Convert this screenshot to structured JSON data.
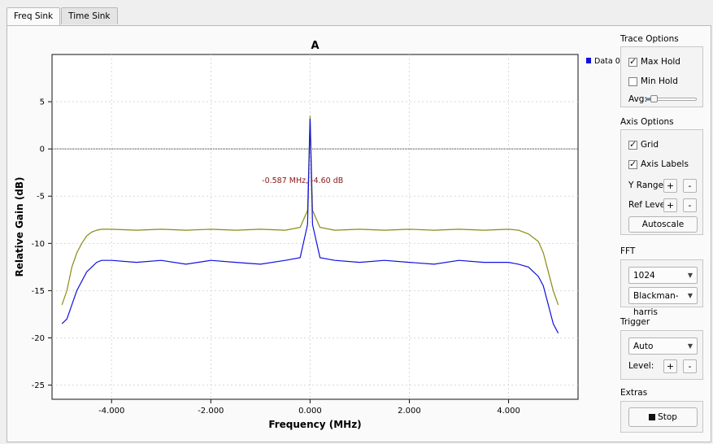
{
  "tabs": [
    {
      "label": "Freq Sink",
      "active": true
    },
    {
      "label": "Time Sink",
      "active": false
    }
  ],
  "chart_data": {
    "type": "line",
    "title": "A",
    "xlabel": "Frequency (MHz)",
    "ylabel": "Relative Gain (dB)",
    "xlim": [
      -5.2,
      5.4
    ],
    "ylim": [
      -26.5,
      10.0
    ],
    "x_ticks": [
      -4.0,
      -2.0,
      0.0,
      2.0,
      4.0
    ],
    "x_tick_labels": [
      "-4.000",
      "-2.000",
      "0.000",
      "2.000",
      "4.000"
    ],
    "y_ticks": [
      5,
      0,
      -5,
      -10,
      -15,
      -20,
      -25
    ],
    "y_tick_labels": [
      "5",
      "0",
      "-5",
      "-10",
      "-15",
      "-20",
      "-25"
    ],
    "grid": true,
    "reference_line_y": 0,
    "annotation": {
      "text": "-0.587 MHz, -4.60 dB",
      "x": -0.15,
      "y": -3.6
    },
    "legend": {
      "entries": [
        "Data 0"
      ],
      "placement": "top-right"
    },
    "series": [
      {
        "name": "Data 0",
        "color": "#1010e0",
        "x": [
          -5.0,
          -4.9,
          -4.8,
          -4.7,
          -4.6,
          -4.5,
          -4.4,
          -4.3,
          -4.2,
          -4.0,
          -3.5,
          -3.0,
          -2.5,
          -2.0,
          -1.5,
          -1.0,
          -0.5,
          -0.2,
          -0.05,
          0.0,
          0.05,
          0.2,
          0.5,
          1.0,
          1.5,
          2.0,
          2.5,
          3.0,
          3.5,
          4.0,
          4.2,
          4.4,
          4.6,
          4.7,
          4.8,
          4.9,
          5.0
        ],
        "values": [
          -18.5,
          -18.0,
          -16.5,
          -15.0,
          -14.0,
          -13.0,
          -12.5,
          -12.0,
          -11.8,
          -11.8,
          -12.0,
          -11.8,
          -12.2,
          -11.8,
          -12.0,
          -12.2,
          -11.8,
          -11.5,
          -8.0,
          3.2,
          -8.0,
          -11.5,
          -11.8,
          -12.0,
          -11.8,
          -12.0,
          -12.2,
          -11.8,
          -12.0,
          -12.0,
          -12.2,
          -12.5,
          -13.5,
          -14.5,
          -16.5,
          -18.5,
          -19.5
        ]
      },
      {
        "name": "Max Hold",
        "color": "#8a8a10",
        "x": [
          -5.0,
          -4.9,
          -4.8,
          -4.7,
          -4.6,
          -4.5,
          -4.4,
          -4.3,
          -4.2,
          -4.0,
          -3.5,
          -3.0,
          -2.5,
          -2.0,
          -1.5,
          -1.0,
          -0.5,
          -0.2,
          -0.05,
          0.0,
          0.05,
          0.2,
          0.5,
          1.0,
          1.5,
          2.0,
          2.5,
          3.0,
          3.5,
          4.0,
          4.2,
          4.4,
          4.6,
          4.7,
          4.8,
          4.9,
          5.0
        ],
        "values": [
          -16.5,
          -15.0,
          -12.5,
          -11.0,
          -10.0,
          -9.2,
          -8.8,
          -8.6,
          -8.5,
          -8.5,
          -8.6,
          -8.5,
          -8.6,
          -8.5,
          -8.6,
          -8.5,
          -8.6,
          -8.3,
          -6.5,
          3.5,
          -6.5,
          -8.3,
          -8.6,
          -8.5,
          -8.6,
          -8.5,
          -8.6,
          -8.5,
          -8.6,
          -8.5,
          -8.6,
          -9.0,
          -9.8,
          -11.0,
          -13.0,
          -15.0,
          -16.5
        ]
      }
    ]
  },
  "options": {
    "trace_title": "Trace Options",
    "max_hold": {
      "label": "Max Hold",
      "checked": true
    },
    "min_hold": {
      "label": "Min Hold",
      "checked": false
    },
    "avg_label": "Avg:",
    "avg_level": 0.12,
    "axis_title": "Axis Options",
    "grid": {
      "label": "Grid",
      "checked": true
    },
    "axis_labels": {
      "label": "Axis Labels",
      "checked": true
    },
    "y_range_label": "Y Range:",
    "ref_level_label": "Ref Level:",
    "plus": "+",
    "minus": "-",
    "autoscale": "Autoscale",
    "fft_title": "FFT",
    "fft_size": "1024",
    "fft_window": "Blackman-harris",
    "trigger_title": "Trigger",
    "trigger_mode": "Auto",
    "trigger_level_label": "Level:",
    "extras_title": "Extras",
    "stop": "Stop"
  },
  "colors": {
    "blue_trace": "#1010e0",
    "maxhold_trace": "#8a8a10",
    "annotation": "#8b1515",
    "slider_accent": "#3b8bd6"
  }
}
